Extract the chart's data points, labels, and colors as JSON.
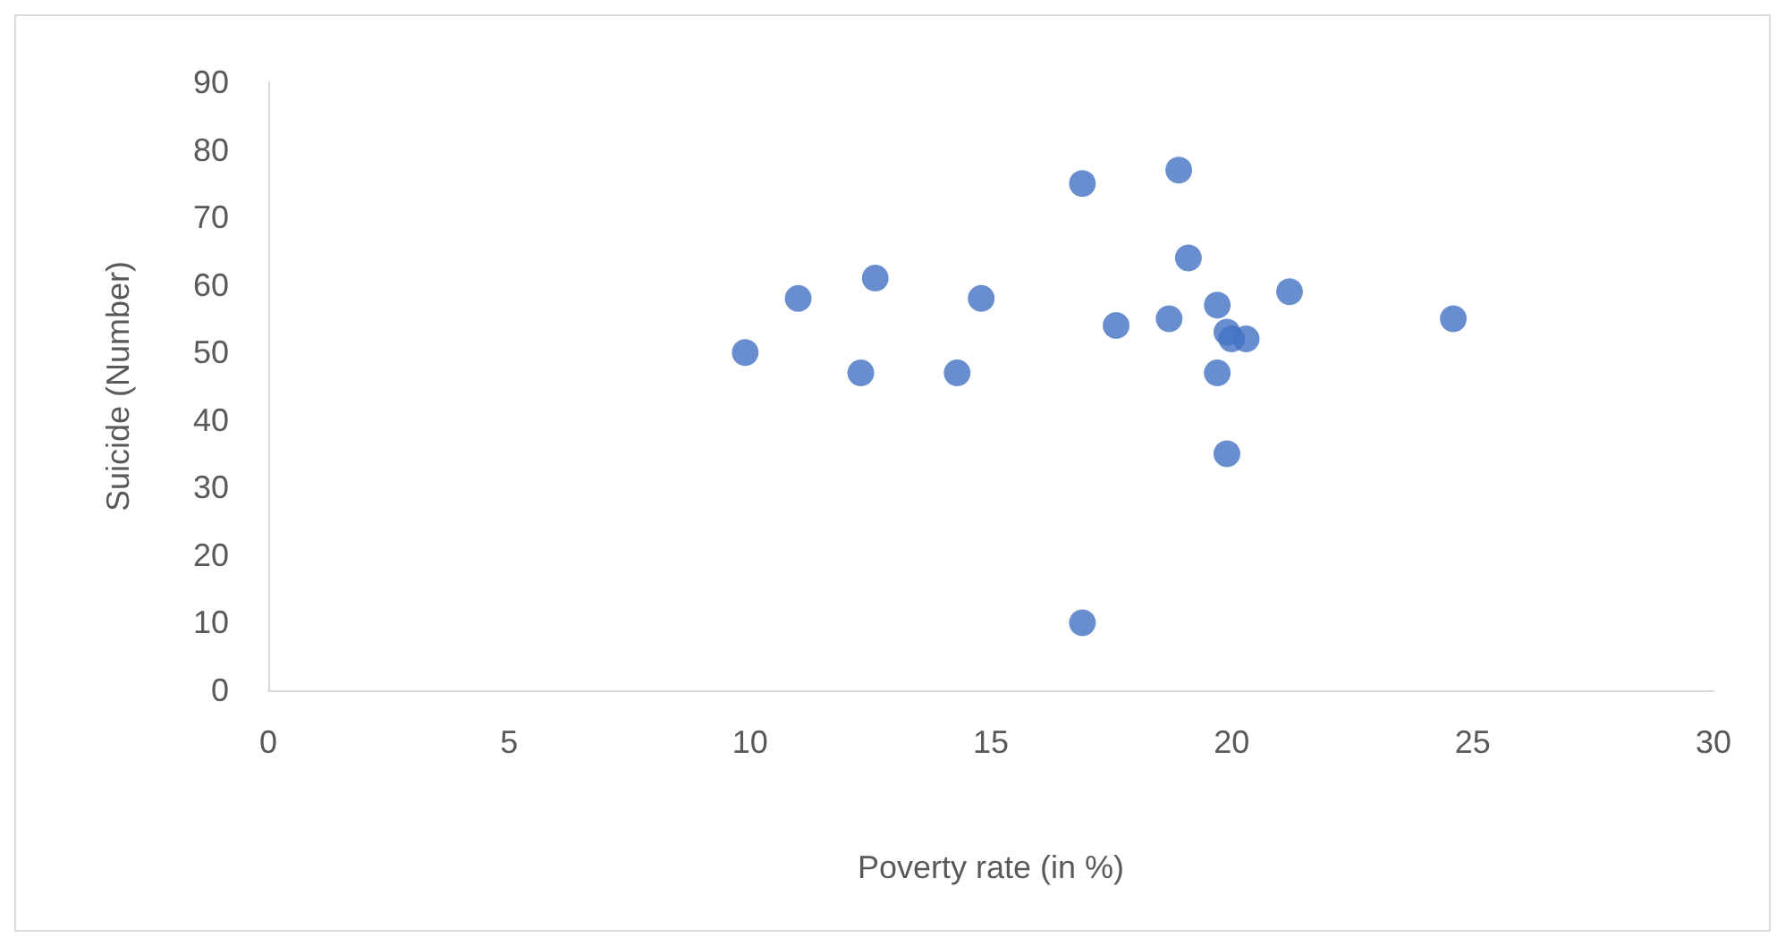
{
  "chart_data": {
    "type": "scatter",
    "xlabel": "Poverty rate (in %)",
    "ylabel": "Suicide (Number)",
    "x": [
      9.9,
      11.0,
      12.3,
      12.6,
      14.3,
      14.8,
      16.9,
      16.9,
      17.6,
      18.7,
      18.9,
      19.1,
      19.7,
      19.7,
      19.9,
      20.0,
      20.3,
      19.9,
      21.2,
      24.6
    ],
    "series": [
      {
        "color": "#4472c4",
        "values": [
          50,
          58,
          47,
          61,
          47,
          58,
          75,
          10,
          54,
          55,
          77,
          64,
          57,
          47,
          53,
          52,
          52,
          35,
          59,
          55
        ]
      }
    ],
    "xlim": [
      0,
      30
    ],
    "xticks": [
      0,
      5,
      10,
      15,
      20,
      25,
      30
    ],
    "ylim": [
      0,
      90
    ],
    "yticks": [
      0,
      10,
      20,
      30,
      40,
      50,
      60,
      70,
      80,
      90
    ],
    "grid": false,
    "marker": "circle"
  }
}
